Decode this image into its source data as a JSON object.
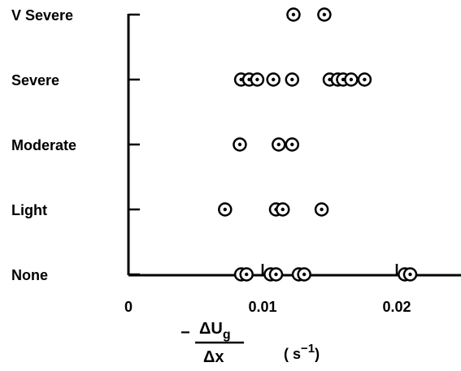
{
  "chart_data": {
    "type": "scatter",
    "categories": [
      "None",
      "Light",
      "Moderate",
      "Severe",
      "V Severe"
    ],
    "x_tick_labels": [
      "0",
      "0.01",
      "0.02"
    ],
    "x_ticks": [
      0,
      0.01,
      0.02
    ],
    "xlim": [
      0,
      0.025
    ],
    "xlabel": {
      "minus": "−",
      "numerator": "ΔU",
      "numerator_sub": "g",
      "denominator": "Δx",
      "unit": "( s",
      "unit_sup": "−1",
      "unit_close": ")"
    },
    "grid": false,
    "series": [
      {
        "points": [
          {
            "category": "None",
            "x": 0.0084
          },
          {
            "category": "None",
            "x": 0.0088
          },
          {
            "category": "None",
            "x": 0.0106
          },
          {
            "category": "None",
            "x": 0.011
          },
          {
            "category": "None",
            "x": 0.0127
          },
          {
            "category": "None",
            "x": 0.0131
          },
          {
            "category": "None",
            "x": 0.0206
          },
          {
            "category": "None",
            "x": 0.021
          },
          {
            "category": "Light",
            "x": 0.0072
          },
          {
            "category": "Light",
            "x": 0.011
          },
          {
            "category": "Light",
            "x": 0.0115
          },
          {
            "category": "Light",
            "x": 0.0144
          },
          {
            "category": "Moderate",
            "x": 0.0083
          },
          {
            "category": "Moderate",
            "x": 0.0112
          },
          {
            "category": "Moderate",
            "x": 0.0122
          },
          {
            "category": "Severe",
            "x": 0.0084
          },
          {
            "category": "Severe",
            "x": 0.009
          },
          {
            "category": "Severe",
            "x": 0.0096
          },
          {
            "category": "Severe",
            "x": 0.0108
          },
          {
            "category": "Severe",
            "x": 0.0122
          },
          {
            "category": "Severe",
            "x": 0.015
          },
          {
            "category": "Severe",
            "x": 0.0156
          },
          {
            "category": "Severe",
            "x": 0.016
          },
          {
            "category": "Severe",
            "x": 0.0166
          },
          {
            "category": "Severe",
            "x": 0.0176
          },
          {
            "category": "V Severe",
            "x": 0.0123
          },
          {
            "category": "V Severe",
            "x": 0.0146
          }
        ]
      }
    ]
  }
}
